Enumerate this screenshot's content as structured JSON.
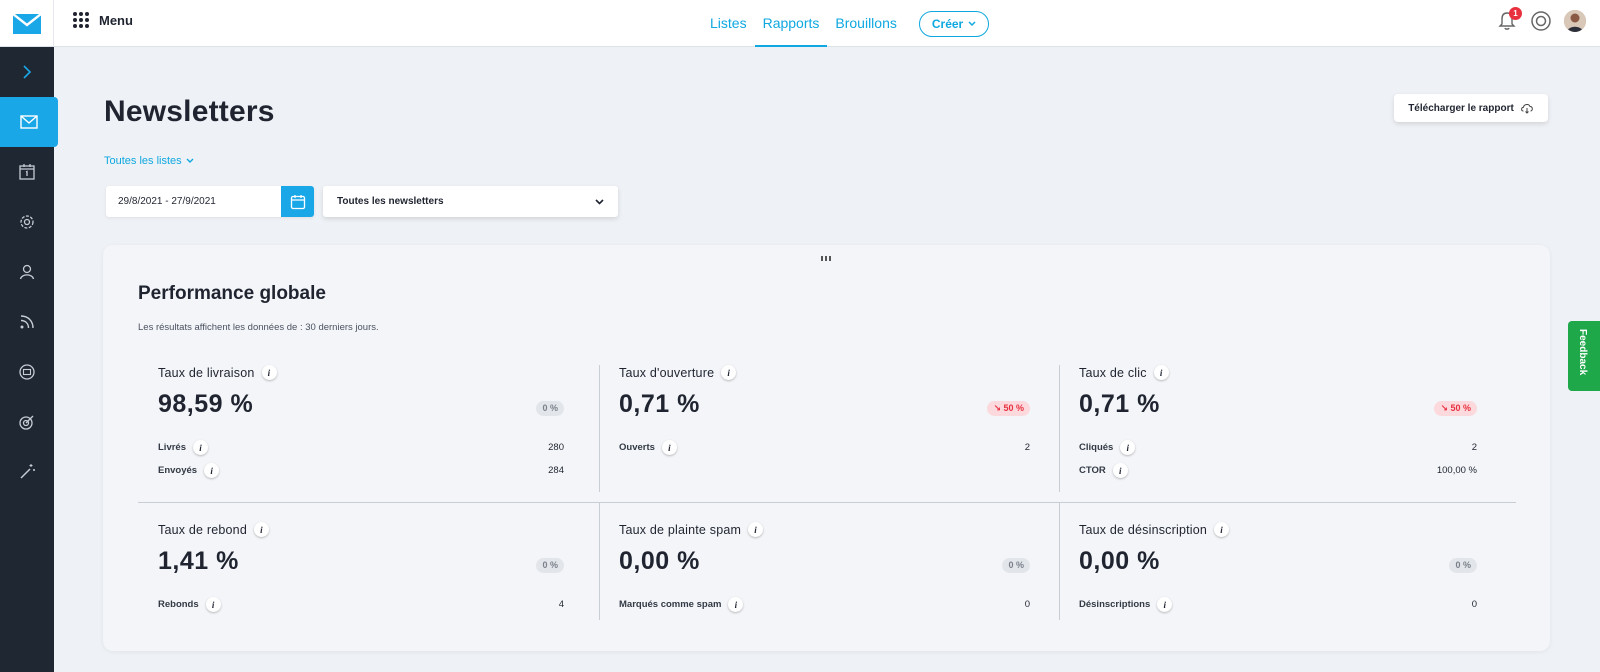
{
  "nav": {
    "menu_label": "Menu",
    "tabs": [
      {
        "label": "Listes",
        "active": false
      },
      {
        "label": "Rapports",
        "active": true
      },
      {
        "label": "Brouillons",
        "active": false
      }
    ],
    "create_label": "Créer",
    "notification_count": "1"
  },
  "sidebar": {
    "items": [
      "chevron-right-icon",
      "envelope-icon",
      "calendar-icon",
      "gear-icon",
      "user-icon",
      "rss-icon",
      "at-icon",
      "target-icon",
      "magic-wand-icon"
    ],
    "active_index": 1
  },
  "page": {
    "title": "Newsletters",
    "download_label": "Télécharger le rapport",
    "lists_filter": "Toutes les listes",
    "date_range": "29/8/2021 - 27/9/2021",
    "newsletter_select": "Toutes les newsletters"
  },
  "card": {
    "title": "Performance globale",
    "subtitle": "Les résultats affichent les données de : 30 derniers jours."
  },
  "metrics": [
    {
      "label": "Taux de livraison",
      "value": "98,59 %",
      "change": "0 %",
      "trend": "neutral",
      "rows": [
        {
          "label": "Livrés",
          "value": "280"
        },
        {
          "label": "Envoyés",
          "value": "284"
        }
      ]
    },
    {
      "label": "Taux d'ouverture",
      "value": "0,71 %",
      "change": "50 %",
      "trend": "down",
      "rows": [
        {
          "label": "Ouverts",
          "value": "2"
        }
      ]
    },
    {
      "label": "Taux de clic",
      "value": "0,71 %",
      "change": "50 %",
      "trend": "down",
      "rows": [
        {
          "label": "Cliqués",
          "value": "2"
        },
        {
          "label": "CTOR",
          "value": "100,00 %"
        }
      ]
    },
    {
      "label": "Taux de rebond",
      "value": "1,41 %",
      "change": "0 %",
      "trend": "neutral",
      "rows": [
        {
          "label": "Rebonds",
          "value": "4"
        }
      ]
    },
    {
      "label": "Taux de plainte spam",
      "value": "0,00 %",
      "change": "0 %",
      "trend": "neutral",
      "rows": [
        {
          "label": "Marqués comme spam",
          "value": "0"
        }
      ]
    },
    {
      "label": "Taux de désinscription",
      "value": "0,00 %",
      "change": "0 %",
      "trend": "neutral",
      "rows": [
        {
          "label": "Désinscriptions",
          "value": "0"
        }
      ]
    }
  ],
  "feedback_label": "Feedback",
  "colors": {
    "accent": "#1aa7e8",
    "sidebar": "#1f2733",
    "negative": "#e8303f",
    "feedback": "#1fa84a"
  }
}
